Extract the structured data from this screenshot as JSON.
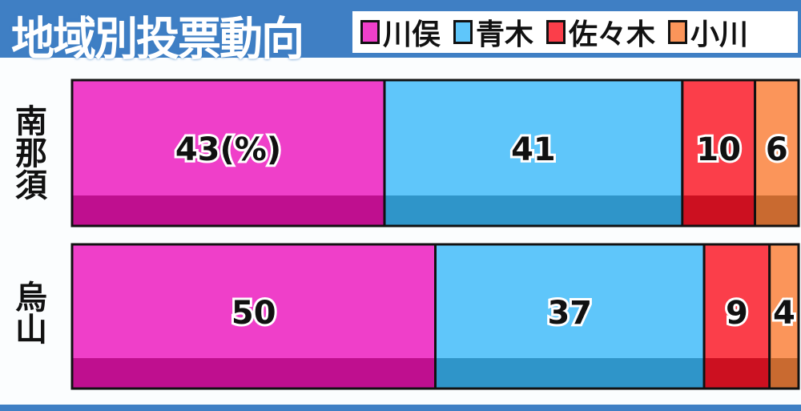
{
  "chart_data": {
    "type": "bar",
    "orientation": "horizontal-stacked",
    "title": "地域別投票動向",
    "categories": [
      "南那須",
      "烏山"
    ],
    "unit_label": "(%)",
    "series": [
      {
        "name": "川俣",
        "color": "#ef3fc9",
        "dark": "#bf0f8f",
        "values": [
          43,
          50
        ]
      },
      {
        "name": "青木",
        "color": "#5fc6fa",
        "dark": "#2f95c9",
        "values": [
          41,
          37
        ]
      },
      {
        "name": "佐々木",
        "color": "#fb3e4a",
        "dark": "#cc1020",
        "values": [
          10,
          9
        ]
      },
      {
        "name": "小川",
        "color": "#fb955a",
        "dark": "#c96a30",
        "values": [
          6,
          4
        ]
      }
    ],
    "legend_position": "top-right",
    "xlim": [
      0,
      100
    ]
  }
}
